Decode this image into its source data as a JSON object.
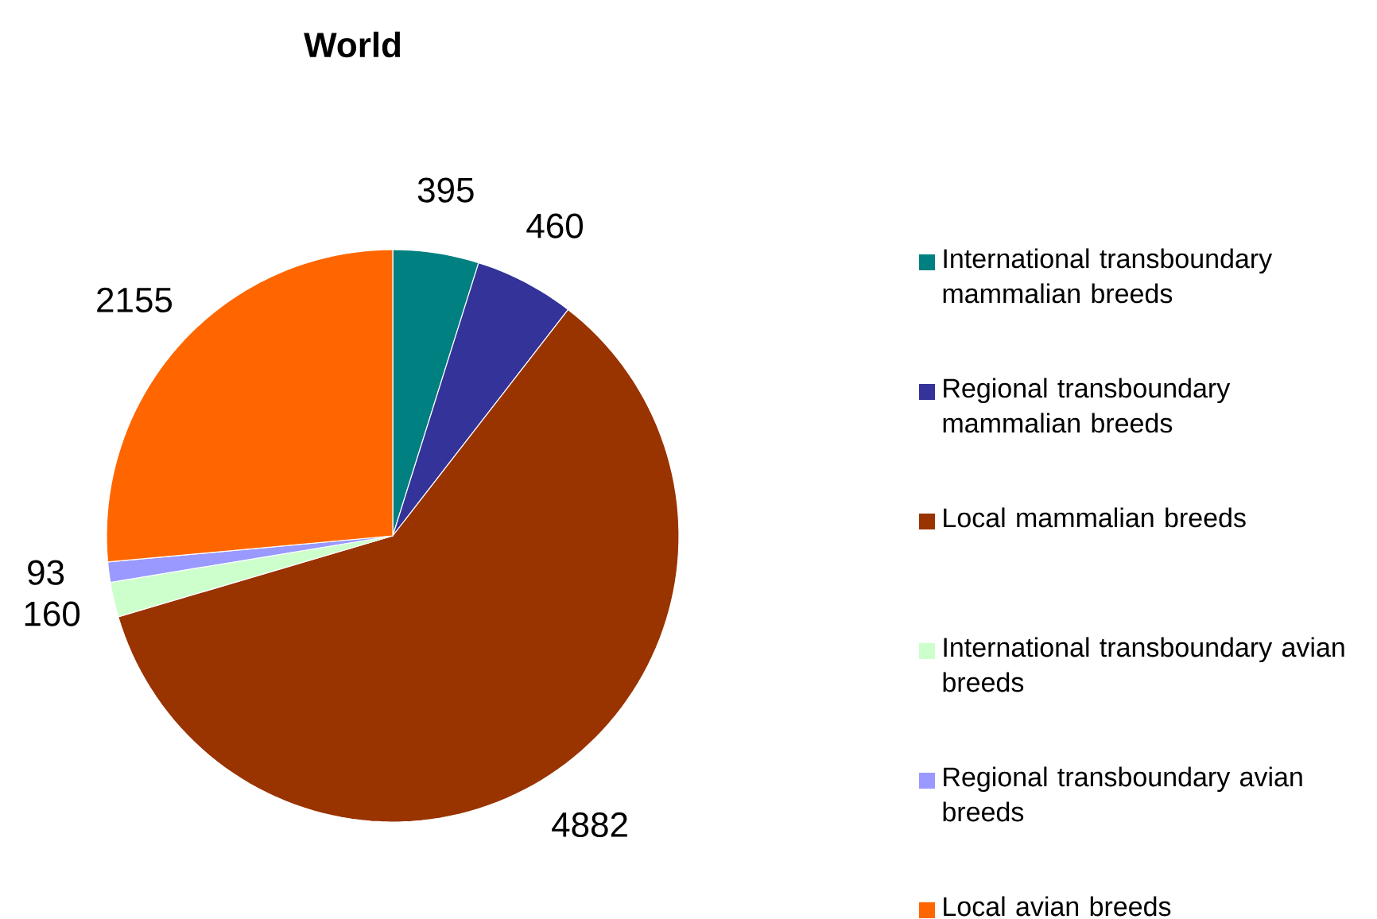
{
  "chart_data": {
    "type": "pie",
    "title": "World",
    "categories": [
      "International transboundary mammalian breeds",
      "Regional transboundary mammalian breeds",
      "Local mammalian breeds",
      "International transboundary avian breeds",
      "Regional transboundary avian breeds",
      "Local avian breeds"
    ],
    "values": [
      395,
      460,
      4882,
      160,
      93,
      2155
    ],
    "colors": [
      "#008080",
      "#333399",
      "#993300",
      "#ccffcc",
      "#9999ff",
      "#ff6600"
    ],
    "data_labels": true,
    "legend": "right"
  }
}
